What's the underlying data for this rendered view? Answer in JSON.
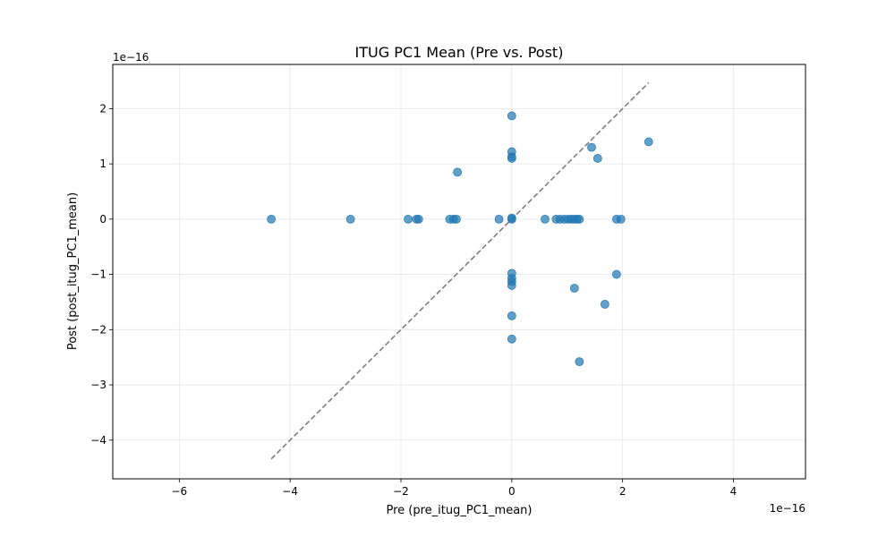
{
  "chart_data": {
    "type": "scatter",
    "title": "ITUG PC1 Mean (Pre vs. Post)",
    "xlabel": "Pre (pre_itug_PC1_mean)",
    "ylabel": "Post (post_itug_PC1_mean)",
    "x_offset_label": "1e−16",
    "y_offset_label": "1e−16",
    "xlim": [
      -7.2,
      5.3
    ],
    "ylim": [
      -4.7,
      2.8
    ],
    "x_ticks": [
      -6,
      -4,
      -2,
      0,
      2,
      4
    ],
    "x_tick_labels": [
      "−6",
      "−4",
      "−2",
      "0",
      "2",
      "4"
    ],
    "y_ticks": [
      -4,
      -3,
      -2,
      -1,
      0,
      1,
      2
    ],
    "y_tick_labels": [
      "−4",
      "−3",
      "−2",
      "−1",
      "0",
      "1",
      "2"
    ],
    "grid": true,
    "point_color": "#1f77b4",
    "reference_line": {
      "style": "dashed",
      "color": "#7f7f7f",
      "from": [
        -4.34,
        -4.34
      ],
      "to": [
        2.47,
        2.47
      ]
    },
    "points": [
      {
        "x": -4.34,
        "y": 0
      },
      {
        "x": -2.91,
        "y": 0
      },
      {
        "x": -1.87,
        "y": 0
      },
      {
        "x": -1.72,
        "y": 0
      },
      {
        "x": -1.68,
        "y": 0
      },
      {
        "x": -1.12,
        "y": 0
      },
      {
        "x": -1.05,
        "y": 0
      },
      {
        "x": -1.0,
        "y": 0
      },
      {
        "x": -0.98,
        "y": 0.85
      },
      {
        "x": -0.23,
        "y": 0
      },
      {
        "x": 0,
        "y": 0
      },
      {
        "x": 0,
        "y": 0.02
      },
      {
        "x": 0,
        "y": 1.87
      },
      {
        "x": 0,
        "y": 1.22
      },
      {
        "x": 0,
        "y": 1.13
      },
      {
        "x": 0,
        "y": 1.1
      },
      {
        "x": 0,
        "y": -0.98
      },
      {
        "x": 0,
        "y": -1.07
      },
      {
        "x": 0,
        "y": -1.13
      },
      {
        "x": 0,
        "y": -1.2
      },
      {
        "x": 0,
        "y": -1.75
      },
      {
        "x": 0,
        "y": -2.17
      },
      {
        "x": 0.6,
        "y": 0
      },
      {
        "x": 0.8,
        "y": 0
      },
      {
        "x": 0.87,
        "y": 0
      },
      {
        "x": 0.95,
        "y": 0
      },
      {
        "x": 1.02,
        "y": 0
      },
      {
        "x": 1.08,
        "y": 0
      },
      {
        "x": 1.13,
        "y": 0
      },
      {
        "x": 1.18,
        "y": 0
      },
      {
        "x": 1.22,
        "y": 0
      },
      {
        "x": 1.13,
        "y": -1.25
      },
      {
        "x": 1.22,
        "y": -2.58
      },
      {
        "x": 1.44,
        "y": 1.3
      },
      {
        "x": 1.55,
        "y": 1.1
      },
      {
        "x": 1.68,
        "y": -1.54
      },
      {
        "x": 1.89,
        "y": 0
      },
      {
        "x": 1.97,
        "y": 0
      },
      {
        "x": 1.89,
        "y": -1.0
      },
      {
        "x": 2.47,
        "y": 1.4
      }
    ]
  }
}
